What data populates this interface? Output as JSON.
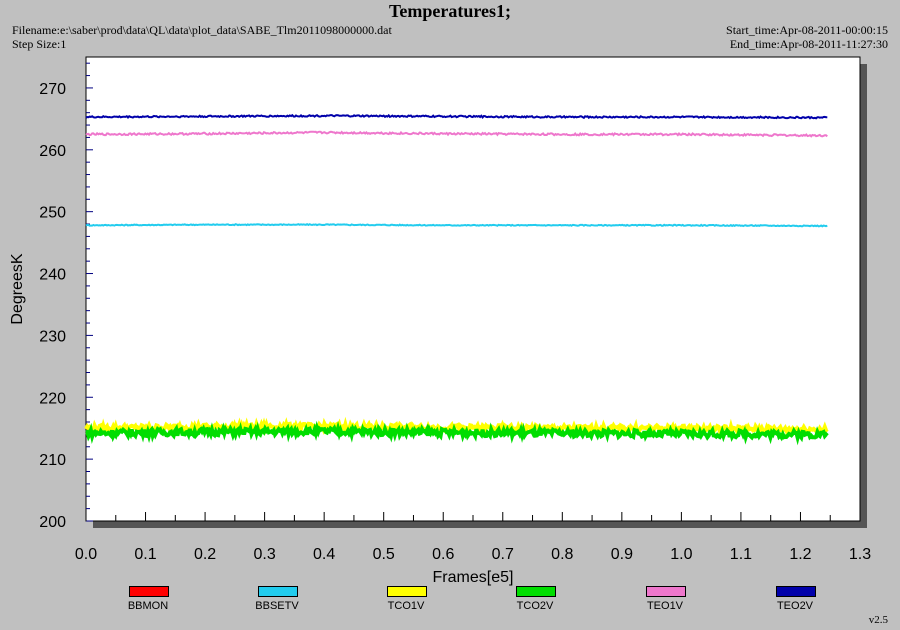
{
  "header": {
    "title": "Temperatures1;",
    "filename": "Filename:e:\\saber\\prod\\data\\QL\\data\\plot_data\\SABE_Tlm2011098000000.dat",
    "step_size": "Step Size:1",
    "start_time": "Start_time:Apr-08-2011-00:00:15",
    "end_time": "End_time:Apr-08-2011-11:27:30",
    "version": "v2.5"
  },
  "chart_data": {
    "type": "line",
    "xlabel": "Frames[e5]",
    "ylabel": "DegreesK",
    "xlim": [
      0.0,
      1.3
    ],
    "ylim": [
      200,
      275
    ],
    "x_ticks": [
      "0.0",
      "0.1",
      "0.2",
      "0.3",
      "0.4",
      "0.5",
      "0.6",
      "0.7",
      "0.8",
      "0.9",
      "1.0",
      "1.1",
      "1.2",
      "1.3"
    ],
    "y_ticks": [
      "200",
      "210",
      "220",
      "230",
      "240",
      "250",
      "260",
      "270"
    ],
    "x_range_of_data": [
      0.0,
      1.245
    ],
    "grid": false,
    "legend_placement": "bottom",
    "series": [
      {
        "name": "BBMON",
        "color": "#ff0000",
        "values": []
      },
      {
        "name": "BBSETV",
        "color": "#22ccee",
        "x": [
          0.0,
          0.2,
          0.4,
          0.6,
          0.8,
          1.0,
          1.245
        ],
        "values": [
          247.8,
          247.9,
          247.9,
          247.8,
          247.8,
          247.8,
          247.7
        ]
      },
      {
        "name": "TCO1V",
        "color": "#ffff00",
        "x": [
          0.0,
          0.2,
          0.4,
          0.6,
          0.8,
          1.0,
          1.245
        ],
        "values": [
          215.0,
          215.2,
          215.3,
          215.1,
          215.0,
          215.0,
          214.8
        ]
      },
      {
        "name": "TCO2V",
        "color": "#00dd00",
        "x": [
          0.0,
          0.2,
          0.4,
          0.6,
          0.8,
          1.0,
          1.245
        ],
        "values": [
          214.2,
          214.4,
          214.5,
          214.3,
          214.2,
          214.1,
          214.0
        ]
      },
      {
        "name": "TEO1V",
        "color": "#ee77cc",
        "x": [
          0.0,
          0.2,
          0.4,
          0.6,
          0.8,
          1.0,
          1.245
        ],
        "values": [
          262.5,
          262.6,
          262.8,
          262.6,
          262.5,
          262.5,
          262.3
        ]
      },
      {
        "name": "TEO2V",
        "color": "#0000aa",
        "x": [
          0.0,
          0.2,
          0.4,
          0.6,
          0.8,
          1.0,
          1.245
        ],
        "values": [
          265.3,
          265.4,
          265.5,
          265.4,
          265.3,
          265.3,
          265.2
        ]
      }
    ]
  }
}
